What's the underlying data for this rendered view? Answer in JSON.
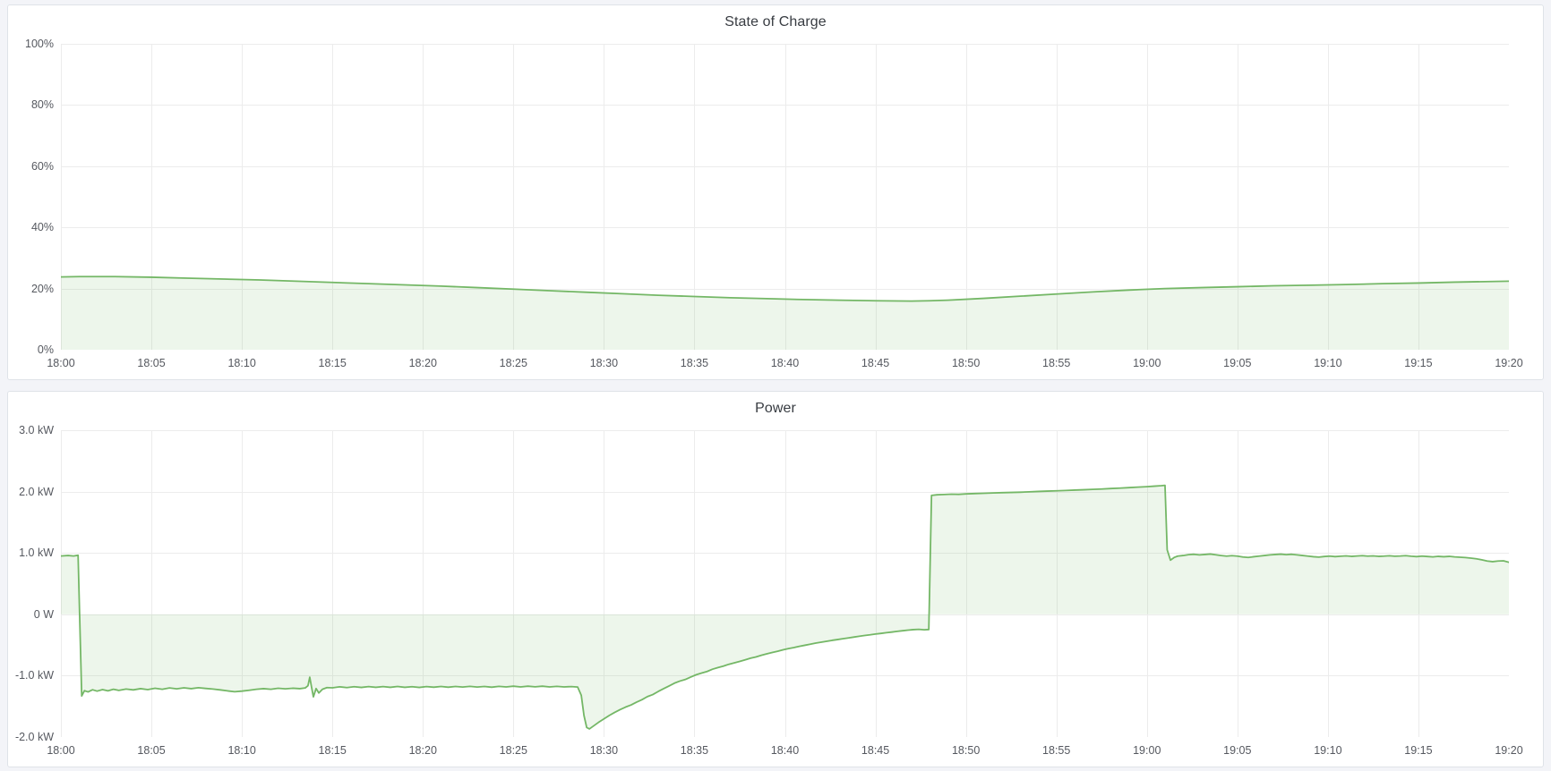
{
  "colors": {
    "page_background": "#f3f4f8",
    "panel_background": "#ffffff",
    "panel_border": "#dfe3e8",
    "grid": "#ececec",
    "axis_text": "#55585f",
    "title_text": "#383c42",
    "series_line": "#74b766",
    "series_fill": "rgba(116,183,102,0.13)"
  },
  "panels": [
    {
      "title": "State of Charge"
    },
    {
      "title": "Power"
    }
  ],
  "chart_data": [
    {
      "type": "area",
      "title": "State of Charge",
      "xlabel": "",
      "ylabel": "",
      "x_start": "18:00",
      "x_end": "19:20",
      "x_minutes_span": 80,
      "x_tick_interval_minutes": 5,
      "x_tick_labels": [
        "18:00",
        "18:05",
        "18:10",
        "18:15",
        "18:20",
        "18:25",
        "18:30",
        "18:35",
        "18:40",
        "18:45",
        "18:50",
        "18:55",
        "19:00",
        "19:05",
        "19:10",
        "19:15",
        "19:20"
      ],
      "y_tick_labels": [
        "100%",
        "80%",
        "60%",
        "40%",
        "20%",
        "0%"
      ],
      "ylim": [
        0,
        100
      ],
      "y_unit": "percent",
      "baseline": 0,
      "grid": true,
      "legend": "none",
      "points_unit": "[minutes since 18:00, percent]",
      "points": [
        [
          0,
          23.8
        ],
        [
          1,
          23.9
        ],
        [
          3,
          23.9
        ],
        [
          5,
          23.7
        ],
        [
          7,
          23.4
        ],
        [
          9,
          23.1
        ],
        [
          11,
          22.8
        ],
        [
          13,
          22.4
        ],
        [
          15,
          22.0
        ],
        [
          17,
          21.6
        ],
        [
          19,
          21.2
        ],
        [
          21,
          20.8
        ],
        [
          23,
          20.3
        ],
        [
          25,
          19.8
        ],
        [
          27,
          19.3
        ],
        [
          29,
          18.8
        ],
        [
          31,
          18.3
        ],
        [
          33,
          17.8
        ],
        [
          35,
          17.4
        ],
        [
          37,
          17.0
        ],
        [
          39,
          16.7
        ],
        [
          41,
          16.4
        ],
        [
          43,
          16.2
        ],
        [
          45,
          16.0
        ],
        [
          47,
          15.9
        ],
        [
          48,
          16.0
        ],
        [
          49,
          16.2
        ],
        [
          51,
          16.8
        ],
        [
          53,
          17.5
        ],
        [
          55,
          18.2
        ],
        [
          57,
          18.9
        ],
        [
          59,
          19.5
        ],
        [
          61,
          20.0
        ],
        [
          63,
          20.3
        ],
        [
          65,
          20.6
        ],
        [
          67,
          20.9
        ],
        [
          69,
          21.1
        ],
        [
          71,
          21.3
        ],
        [
          73,
          21.6
        ],
        [
          75,
          21.8
        ],
        [
          77,
          22.1
        ],
        [
          79,
          22.3
        ],
        [
          80,
          22.4
        ]
      ]
    },
    {
      "type": "area",
      "title": "Power",
      "xlabel": "",
      "ylabel": "",
      "x_start": "18:00",
      "x_end": "19:20",
      "x_minutes_span": 80,
      "x_tick_interval_minutes": 5,
      "x_tick_labels": [
        "18:00",
        "18:05",
        "18:10",
        "18:15",
        "18:20",
        "18:25",
        "18:30",
        "18:35",
        "18:40",
        "18:45",
        "18:50",
        "18:55",
        "19:00",
        "19:05",
        "19:10",
        "19:15",
        "19:20"
      ],
      "y_tick_labels": [
        "3.0 kW",
        "2.0 kW",
        "1.0 kW",
        "0 W",
        "-1.0 kW",
        "-2.0 kW"
      ],
      "ylim": [
        -2000,
        3000
      ],
      "y_unit": "watts",
      "baseline": 0,
      "grid": true,
      "legend": "none",
      "points_unit": "[minutes since 18:00, watts]",
      "points": [
        [
          0,
          950
        ],
        [
          0.4,
          958
        ],
        [
          0.7,
          950
        ],
        [
          0.95,
          962
        ],
        [
          1.15,
          -1330
        ],
        [
          1.3,
          -1245
        ],
        [
          1.5,
          -1265
        ],
        [
          1.75,
          -1230
        ],
        [
          2,
          -1252
        ],
        [
          2.3,
          -1228
        ],
        [
          2.6,
          -1248
        ],
        [
          2.9,
          -1222
        ],
        [
          3.2,
          -1240
        ],
        [
          3.6,
          -1218
        ],
        [
          4,
          -1232
        ],
        [
          4.4,
          -1212
        ],
        [
          4.8,
          -1228
        ],
        [
          5.2,
          -1205
        ],
        [
          5.6,
          -1222
        ],
        [
          6,
          -1200
        ],
        [
          6.4,
          -1215
        ],
        [
          6.8,
          -1198
        ],
        [
          7.2,
          -1212
        ],
        [
          7.6,
          -1196
        ],
        [
          8,
          -1208
        ],
        [
          8.4,
          -1218
        ],
        [
          8.8,
          -1232
        ],
        [
          9.2,
          -1248
        ],
        [
          9.6,
          -1262
        ],
        [
          10,
          -1252
        ],
        [
          10.4,
          -1238
        ],
        [
          10.8,
          -1222
        ],
        [
          11.2,
          -1212
        ],
        [
          11.6,
          -1222
        ],
        [
          12,
          -1206
        ],
        [
          12.4,
          -1215
        ],
        [
          12.8,
          -1205
        ],
        [
          13.2,
          -1212
        ],
        [
          13.5,
          -1200
        ],
        [
          13.65,
          -1165
        ],
        [
          13.75,
          -1025
        ],
        [
          13.85,
          -1190
        ],
        [
          13.95,
          -1345
        ],
        [
          14.1,
          -1210
        ],
        [
          14.25,
          -1282
        ],
        [
          14.45,
          -1222
        ],
        [
          14.7,
          -1195
        ],
        [
          15,
          -1198
        ],
        [
          15.4,
          -1182
        ],
        [
          15.8,
          -1195
        ],
        [
          16.2,
          -1180
        ],
        [
          16.6,
          -1192
        ],
        [
          17,
          -1178
        ],
        [
          17.4,
          -1190
        ],
        [
          17.8,
          -1178
        ],
        [
          18.2,
          -1190
        ],
        [
          18.6,
          -1176
        ],
        [
          19,
          -1190
        ],
        [
          19.4,
          -1180
        ],
        [
          19.8,
          -1192
        ],
        [
          20.2,
          -1178
        ],
        [
          20.6,
          -1188
        ],
        [
          21,
          -1176
        ],
        [
          21.4,
          -1188
        ],
        [
          21.8,
          -1176
        ],
        [
          22.2,
          -1186
        ],
        [
          22.6,
          -1174
        ],
        [
          23,
          -1186
        ],
        [
          23.4,
          -1176
        ],
        [
          23.8,
          -1188
        ],
        [
          24.2,
          -1174
        ],
        [
          24.6,
          -1184
        ],
        [
          25,
          -1172
        ],
        [
          25.4,
          -1184
        ],
        [
          25.8,
          -1172
        ],
        [
          26.2,
          -1182
        ],
        [
          26.6,
          -1172
        ],
        [
          27,
          -1184
        ],
        [
          27.4,
          -1174
        ],
        [
          27.8,
          -1184
        ],
        [
          28.2,
          -1178
        ],
        [
          28.55,
          -1186
        ],
        [
          28.75,
          -1320
        ],
        [
          28.9,
          -1650
        ],
        [
          29.05,
          -1845
        ],
        [
          29.2,
          -1868
        ],
        [
          29.45,
          -1815
        ],
        [
          29.7,
          -1762
        ],
        [
          30,
          -1705
        ],
        [
          30.3,
          -1648
        ],
        [
          30.6,
          -1598
        ],
        [
          30.9,
          -1552
        ],
        [
          31.2,
          -1512
        ],
        [
          31.5,
          -1478
        ],
        [
          31.8,
          -1432
        ],
        [
          32.1,
          -1392
        ],
        [
          32.4,
          -1342
        ],
        [
          32.7,
          -1308
        ],
        [
          33,
          -1258
        ],
        [
          33.3,
          -1212
        ],
        [
          33.6,
          -1168
        ],
        [
          33.9,
          -1122
        ],
        [
          34.2,
          -1088
        ],
        [
          34.5,
          -1062
        ],
        [
          34.8,
          -1022
        ],
        [
          35.1,
          -985
        ],
        [
          35.4,
          -958
        ],
        [
          35.7,
          -932
        ],
        [
          36,
          -895
        ],
        [
          36.3,
          -868
        ],
        [
          36.6,
          -845
        ],
        [
          36.9,
          -815
        ],
        [
          37.2,
          -792
        ],
        [
          37.5,
          -768
        ],
        [
          37.8,
          -742
        ],
        [
          38.1,
          -715
        ],
        [
          38.4,
          -695
        ],
        [
          38.7,
          -668
        ],
        [
          39,
          -645
        ],
        [
          39.3,
          -622
        ],
        [
          39.6,
          -602
        ],
        [
          39.9,
          -578
        ],
        [
          40.2,
          -558
        ],
        [
          40.5,
          -542
        ],
        [
          40.8,
          -522
        ],
        [
          41.1,
          -505
        ],
        [
          41.4,
          -488
        ],
        [
          41.7,
          -470
        ],
        [
          42,
          -455
        ],
        [
          42.3,
          -440
        ],
        [
          42.6,
          -425
        ],
        [
          42.9,
          -412
        ],
        [
          43.2,
          -398
        ],
        [
          43.5,
          -385
        ],
        [
          43.8,
          -372
        ],
        [
          44.1,
          -358
        ],
        [
          44.4,
          -345
        ],
        [
          44.7,
          -335
        ],
        [
          45,
          -322
        ],
        [
          45.3,
          -312
        ],
        [
          45.6,
          -300
        ],
        [
          45.9,
          -290
        ],
        [
          46.2,
          -278
        ],
        [
          46.5,
          -268
        ],
        [
          46.8,
          -258
        ],
        [
          47.1,
          -250
        ],
        [
          47.4,
          -245
        ],
        [
          47.7,
          -252
        ],
        [
          47.95,
          -248
        ],
        [
          48.1,
          1938
        ],
        [
          48.4,
          1948
        ],
        [
          48.8,
          1952
        ],
        [
          49.2,
          1958
        ],
        [
          49.6,
          1955
        ],
        [
          50,
          1962
        ],
        [
          50.5,
          1968
        ],
        [
          51,
          1972
        ],
        [
          51.5,
          1978
        ],
        [
          52,
          1982
        ],
        [
          52.5,
          1986
        ],
        [
          53,
          1990
        ],
        [
          53.5,
          1996
        ],
        [
          54,
          2002
        ],
        [
          54.5,
          2008
        ],
        [
          55,
          2012
        ],
        [
          55.5,
          2018
        ],
        [
          56,
          2024
        ],
        [
          56.5,
          2030
        ],
        [
          57,
          2036
        ],
        [
          57.5,
          2042
        ],
        [
          58,
          2050
        ],
        [
          58.5,
          2056
        ],
        [
          59,
          2064
        ],
        [
          59.5,
          2072
        ],
        [
          60,
          2080
        ],
        [
          60.4,
          2088
        ],
        [
          60.8,
          2096
        ],
        [
          61,
          2102
        ],
        [
          61.12,
          1050
        ],
        [
          61.3,
          882
        ],
        [
          61.5,
          925
        ],
        [
          61.7,
          948
        ],
        [
          62,
          958
        ],
        [
          62.3,
          972
        ],
        [
          62.6,
          978
        ],
        [
          62.9,
          968
        ],
        [
          63.2,
          975
        ],
        [
          63.5,
          982
        ],
        [
          63.8,
          970
        ],
        [
          64.1,
          958
        ],
        [
          64.4,
          948
        ],
        [
          64.7,
          956
        ],
        [
          65,
          948
        ],
        [
          65.3,
          934
        ],
        [
          65.6,
          926
        ],
        [
          65.9,
          938
        ],
        [
          66.2,
          948
        ],
        [
          66.5,
          958
        ],
        [
          66.8,
          968
        ],
        [
          67.1,
          975
        ],
        [
          67.4,
          980
        ],
        [
          67.7,
          972
        ],
        [
          68,
          978
        ],
        [
          68.3,
          968
        ],
        [
          68.6,
          958
        ],
        [
          68.9,
          948
        ],
        [
          69.2,
          938
        ],
        [
          69.5,
          932
        ],
        [
          69.8,
          942
        ],
        [
          70.1,
          948
        ],
        [
          70.4,
          940
        ],
        [
          70.7,
          946
        ],
        [
          71,
          952
        ],
        [
          71.3,
          944
        ],
        [
          71.6,
          950
        ],
        [
          71.9,
          956
        ],
        [
          72.2,
          948
        ],
        [
          72.5,
          952
        ],
        [
          72.8,
          944
        ],
        [
          73.1,
          948
        ],
        [
          73.4,
          954
        ],
        [
          73.7,
          946
        ],
        [
          74,
          950
        ],
        [
          74.3,
          956
        ],
        [
          74.6,
          946
        ],
        [
          74.9,
          940
        ],
        [
          75.2,
          948
        ],
        [
          75.5,
          942
        ],
        [
          75.8,
          936
        ],
        [
          76.1,
          944
        ],
        [
          76.4,
          938
        ],
        [
          76.7,
          944
        ],
        [
          77,
          936
        ],
        [
          77.3,
          930
        ],
        [
          77.6,
          924
        ],
        [
          77.9,
          916
        ],
        [
          78.2,
          905
        ],
        [
          78.5,
          888
        ],
        [
          78.8,
          868
        ],
        [
          79.1,
          858
        ],
        [
          79.4,
          868
        ],
        [
          79.7,
          872
        ],
        [
          80,
          848
        ]
      ]
    }
  ]
}
